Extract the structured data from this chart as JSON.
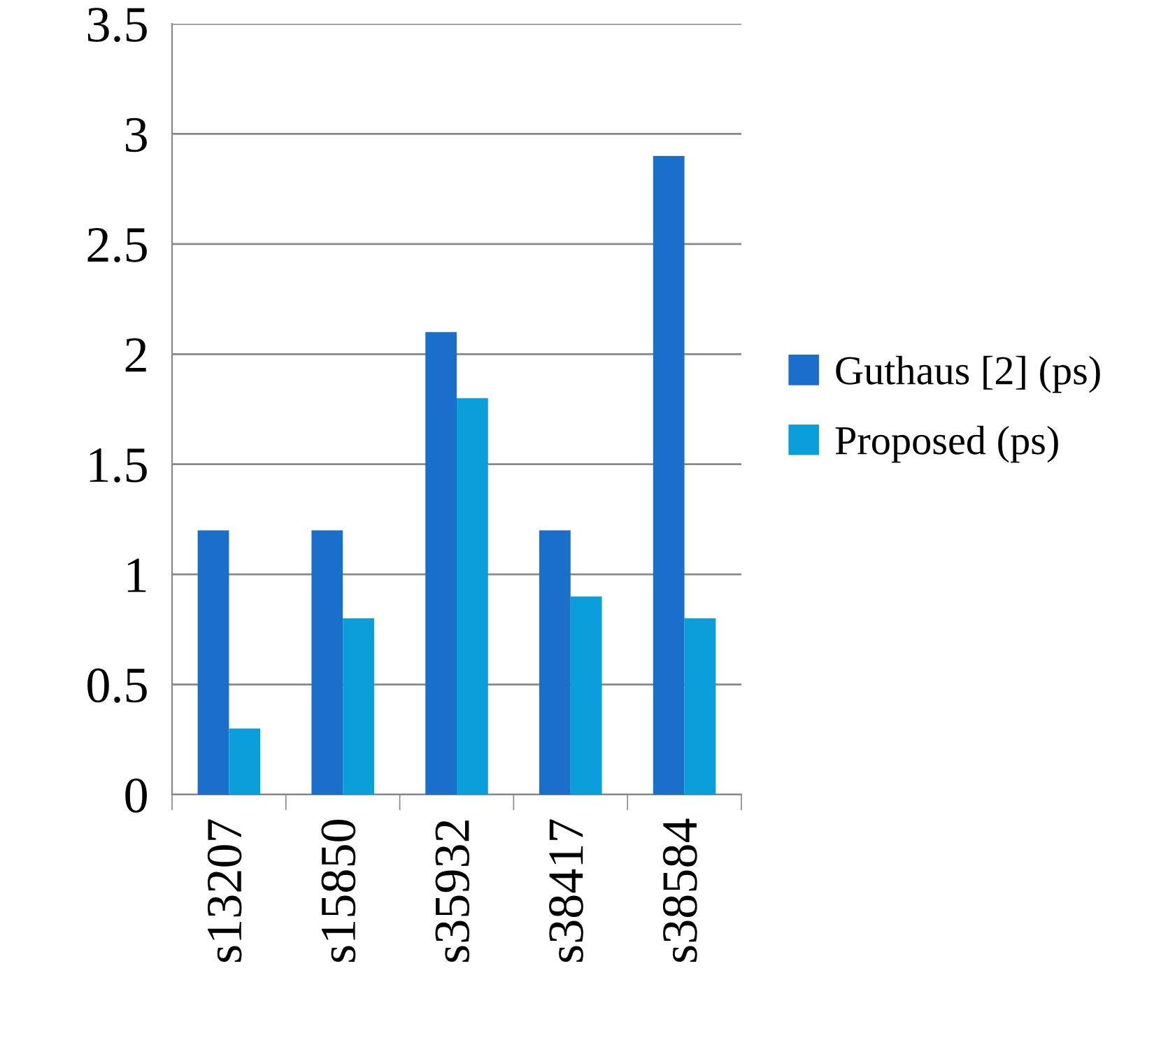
{
  "chart_data": {
    "type": "bar",
    "categories": [
      "s13207",
      "s15850",
      "s35932",
      "s38417",
      "s38584"
    ],
    "series": [
      {
        "name": "Guthaus [2] (ps)",
        "color": "#1a6fcb",
        "values": [
          1.2,
          1.2,
          2.1,
          1.2,
          2.9
        ]
      },
      {
        "name": "Proposed (ps)",
        "color": "#0a9fdb",
        "values": [
          0.3,
          0.8,
          1.8,
          0.9,
          0.8
        ]
      }
    ],
    "ylim": [
      0,
      3.5
    ],
    "yticks": [
      0,
      0.5,
      1,
      1.5,
      2,
      2.5,
      3,
      3.5
    ],
    "grid": "y",
    "legend": "right"
  }
}
